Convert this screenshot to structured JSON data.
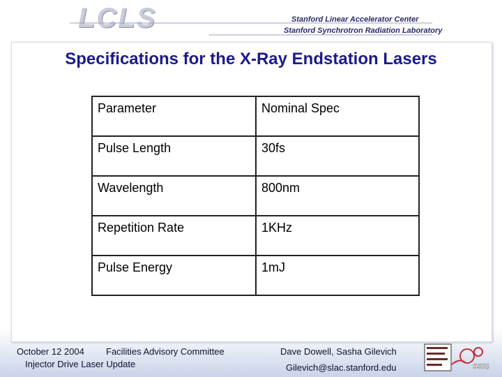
{
  "header": {
    "logo": "LCLS",
    "lab_1": "Stanford Linear Accelerator Center",
    "lab_2": "Stanford Synchrotron Radiation Laboratory"
  },
  "title": "Specifications for the X-Ray Endstation Lasers",
  "table": {
    "header": [
      "Parameter",
      "Nominal Spec"
    ],
    "rows": [
      [
        "Pulse Length",
        "30fs"
      ],
      [
        "Wavelength",
        "800nm"
      ],
      [
        "Repetition Rate",
        "1KHz"
      ],
      [
        "Pulse Energy",
        "1mJ"
      ]
    ]
  },
  "footer": {
    "date": "October 12 2004",
    "event": "Facilities Advisory Committee",
    "subject": "Injector Drive Laser Update",
    "authors": "Dave Dowell, Sasha Gilevich",
    "email": "Gilevich@slac.stanford.edu",
    "badge": "SSRL"
  }
}
